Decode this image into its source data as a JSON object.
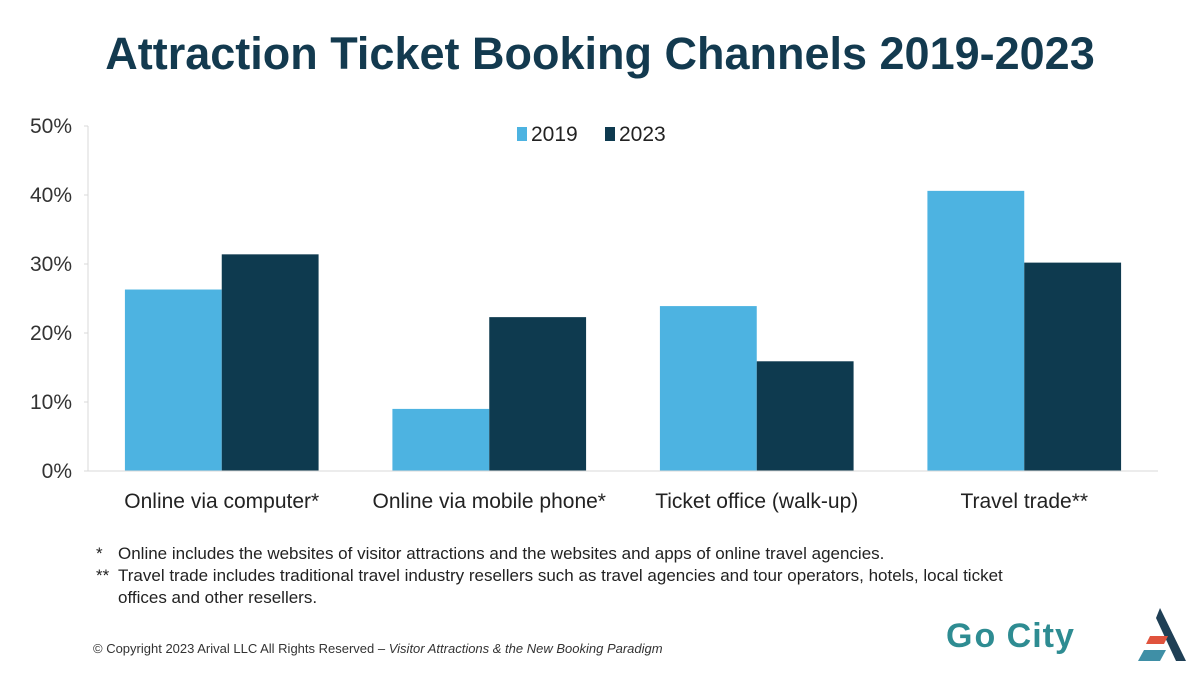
{
  "chart_data": {
    "type": "bar",
    "title": "Attraction Ticket Booking Channels 2019-2023",
    "categories": [
      "Online via computer*",
      "Online via mobile phone*",
      "Ticket office (walk-up)",
      "Travel trade**"
    ],
    "series": [
      {
        "name": "2019",
        "color": "#4db3e1",
        "values": [
          26.3,
          9.0,
          23.9,
          40.6
        ]
      },
      {
        "name": "2023",
        "color": "#0e3a4f",
        "values": [
          31.4,
          22.3,
          15.9,
          30.2
        ]
      }
    ],
    "yticks": [
      "0%",
      "10%",
      "20%",
      "30%",
      "40%",
      "50%"
    ],
    "ylim": [
      0,
      50
    ],
    "yunit": "%",
    "grid": false,
    "legend": "top-center"
  },
  "notes": [
    {
      "mark": "*",
      "text": "Online includes the websites of visitor attractions and the websites and apps of online travel agencies."
    },
    {
      "mark": "**",
      "text": "Travel trade includes traditional travel industry resellers such as travel agencies and tour operators, hotels, local ticket offices and other resellers."
    }
  ],
  "footer": {
    "copyright": "© Copyright 2023 Arival LLC All Rights Reserved – ",
    "source": "Visitor Attractions & the New Booking Paradigm"
  },
  "logos": {
    "gocity": "Go City",
    "arival": "Arival"
  }
}
